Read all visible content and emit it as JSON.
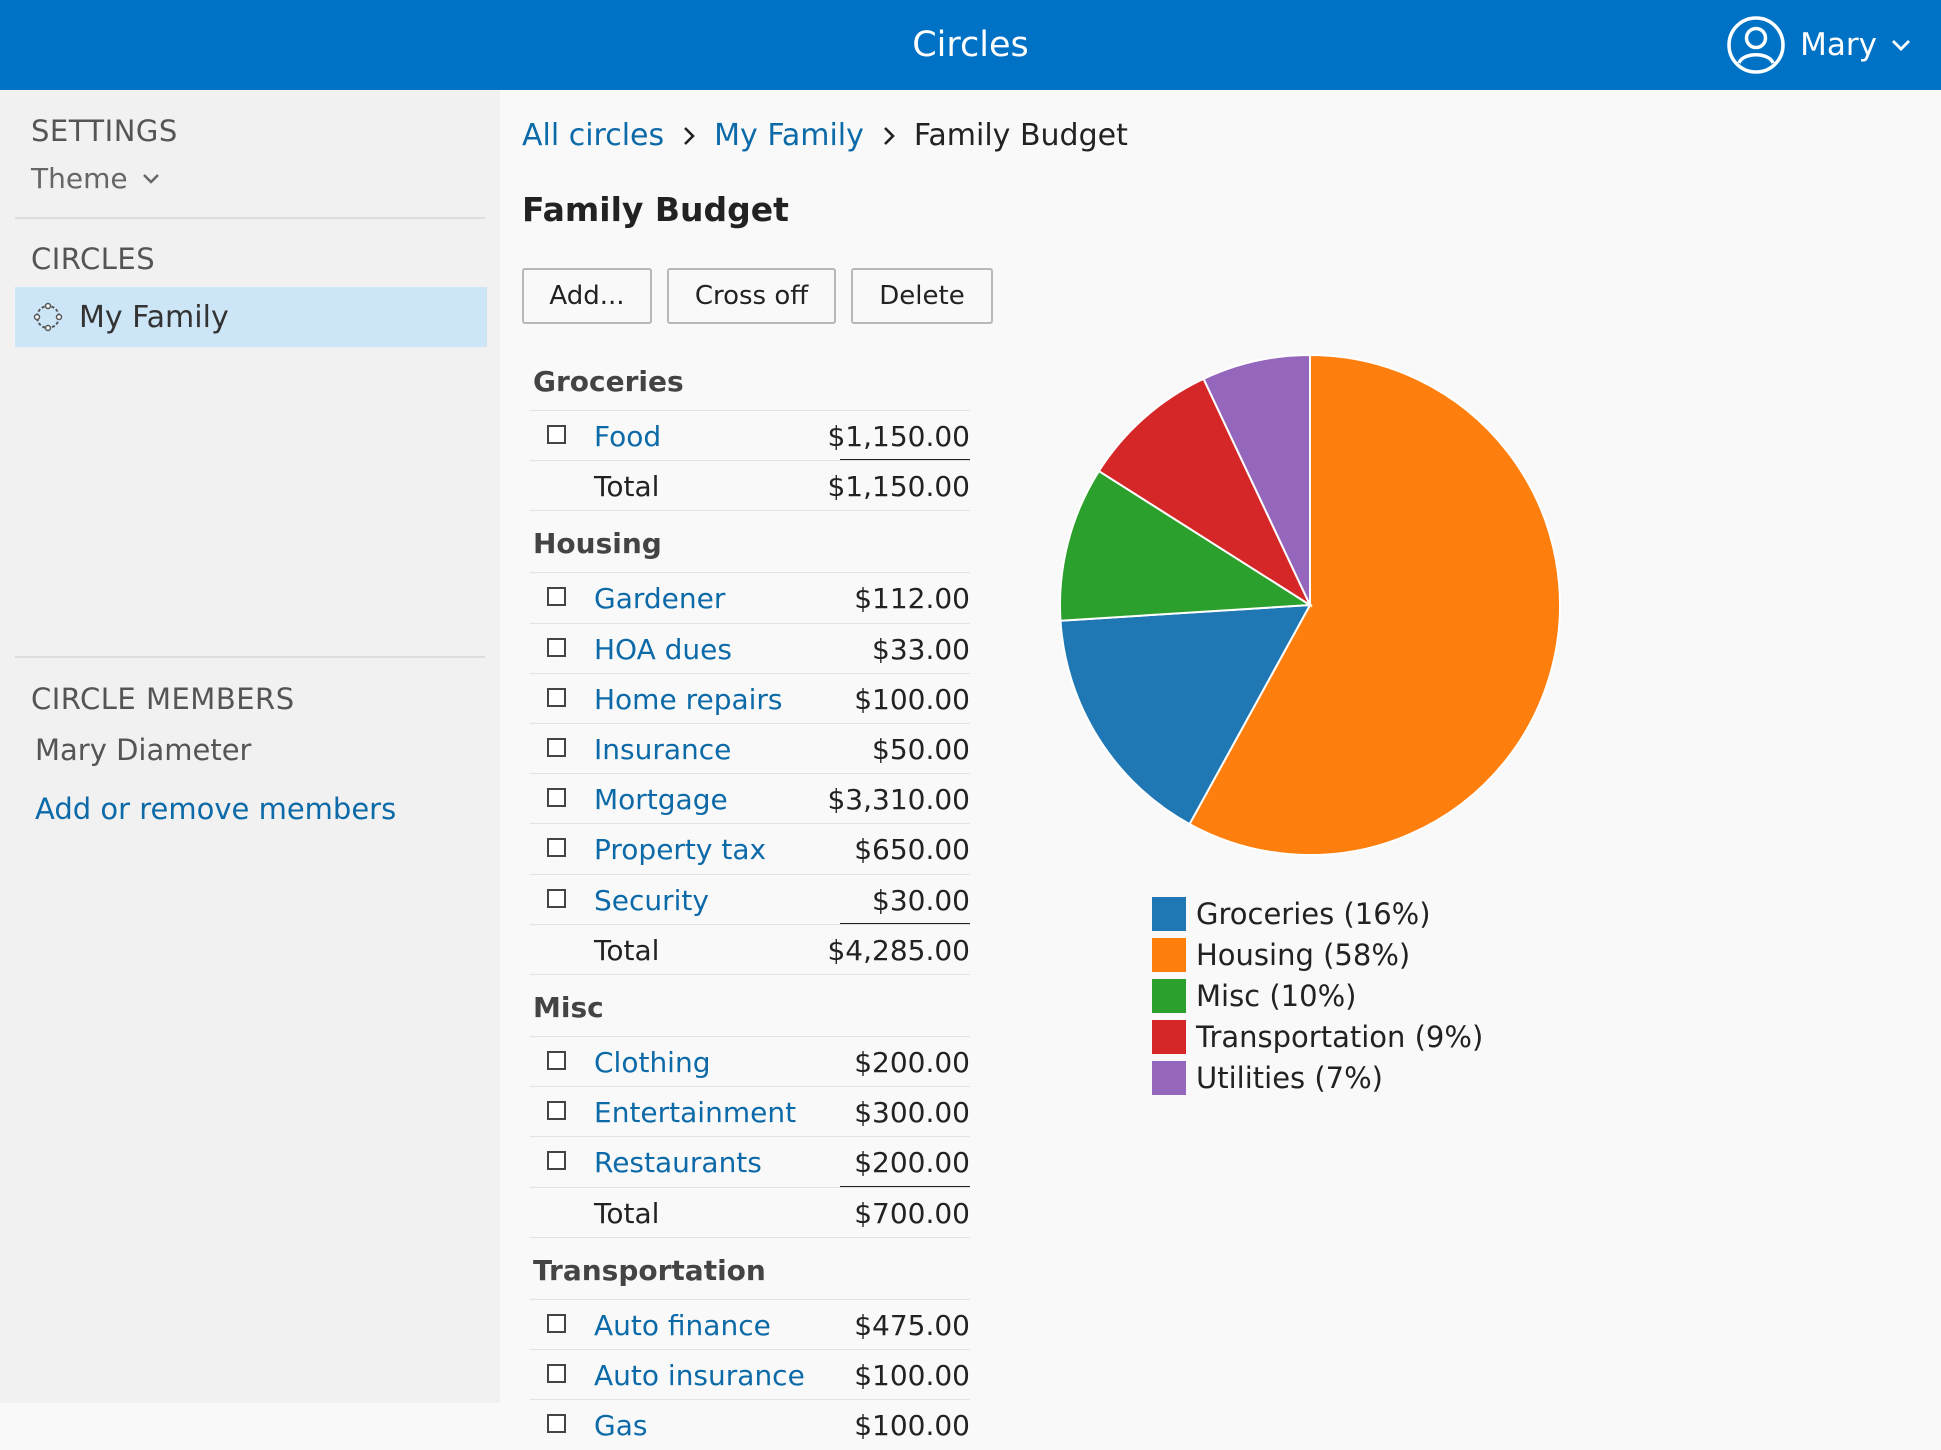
{
  "header": {
    "title": "Circles",
    "user_name": "Mary"
  },
  "sidebar": {
    "settings_heading": "SETTINGS",
    "theme_label": "Theme",
    "circles_heading": "CIRCLES",
    "circles": [
      {
        "label": "My Family"
      }
    ],
    "members_heading": "CIRCLE MEMBERS",
    "members": [
      "Mary Diameter"
    ],
    "add_members_label": "Add or remove members"
  },
  "breadcrumb": {
    "items": [
      "All circles",
      "My Family"
    ],
    "current": "Family Budget"
  },
  "page": {
    "title": "Family Budget",
    "buttons": {
      "add": "Add...",
      "cross_off": "Cross off",
      "delete": "Delete"
    }
  },
  "budget": {
    "total_label": "Total",
    "categories": [
      {
        "name": "Groceries",
        "items": [
          {
            "name": "Food",
            "amount": "$1,150.00"
          }
        ],
        "total": "$1,150.00"
      },
      {
        "name": "Housing",
        "items": [
          {
            "name": "Gardener",
            "amount": "$112.00"
          },
          {
            "name": "HOA dues",
            "amount": "$33.00"
          },
          {
            "name": "Home repairs",
            "amount": "$100.00"
          },
          {
            "name": "Insurance",
            "amount": "$50.00"
          },
          {
            "name": "Mortgage",
            "amount": "$3,310.00"
          },
          {
            "name": "Property tax",
            "amount": "$650.00"
          },
          {
            "name": "Security",
            "amount": "$30.00"
          }
        ],
        "total": "$4,285.00"
      },
      {
        "name": "Misc",
        "items": [
          {
            "name": "Clothing",
            "amount": "$200.00"
          },
          {
            "name": "Entertainment",
            "amount": "$300.00"
          },
          {
            "name": "Restaurants",
            "amount": "$200.00"
          }
        ],
        "total": "$700.00"
      },
      {
        "name": "Transportation",
        "items": [
          {
            "name": "Auto finance",
            "amount": "$475.00"
          },
          {
            "name": "Auto insurance",
            "amount": "$100.00"
          },
          {
            "name": "Gas",
            "amount": "$100.00"
          }
        ]
      }
    ]
  },
  "chart_data": {
    "type": "pie",
    "legend_position": "bottom",
    "slices": [
      {
        "label": "Groceries (16%)",
        "value": 16,
        "color": "#1f77b4"
      },
      {
        "label": "Housing (58%)",
        "value": 58,
        "color": "#ff7f0e"
      },
      {
        "label": "Misc (10%)",
        "value": 10,
        "color": "#2ca02c"
      },
      {
        "label": "Transportation (9%)",
        "value": 9,
        "color": "#d62728"
      },
      {
        "label": "Utilities (7%)",
        "value": 7,
        "color": "#9467bd"
      }
    ],
    "draw_order": [
      "Housing (58%)",
      "Groceries (16%)",
      "Misc (10%)",
      "Transportation (9%)",
      "Utilities (7%)"
    ]
  },
  "colors": {
    "header_bg": "#0072c6",
    "link": "#0d6aa8",
    "selected_circle_bg": "#cde6f7"
  }
}
